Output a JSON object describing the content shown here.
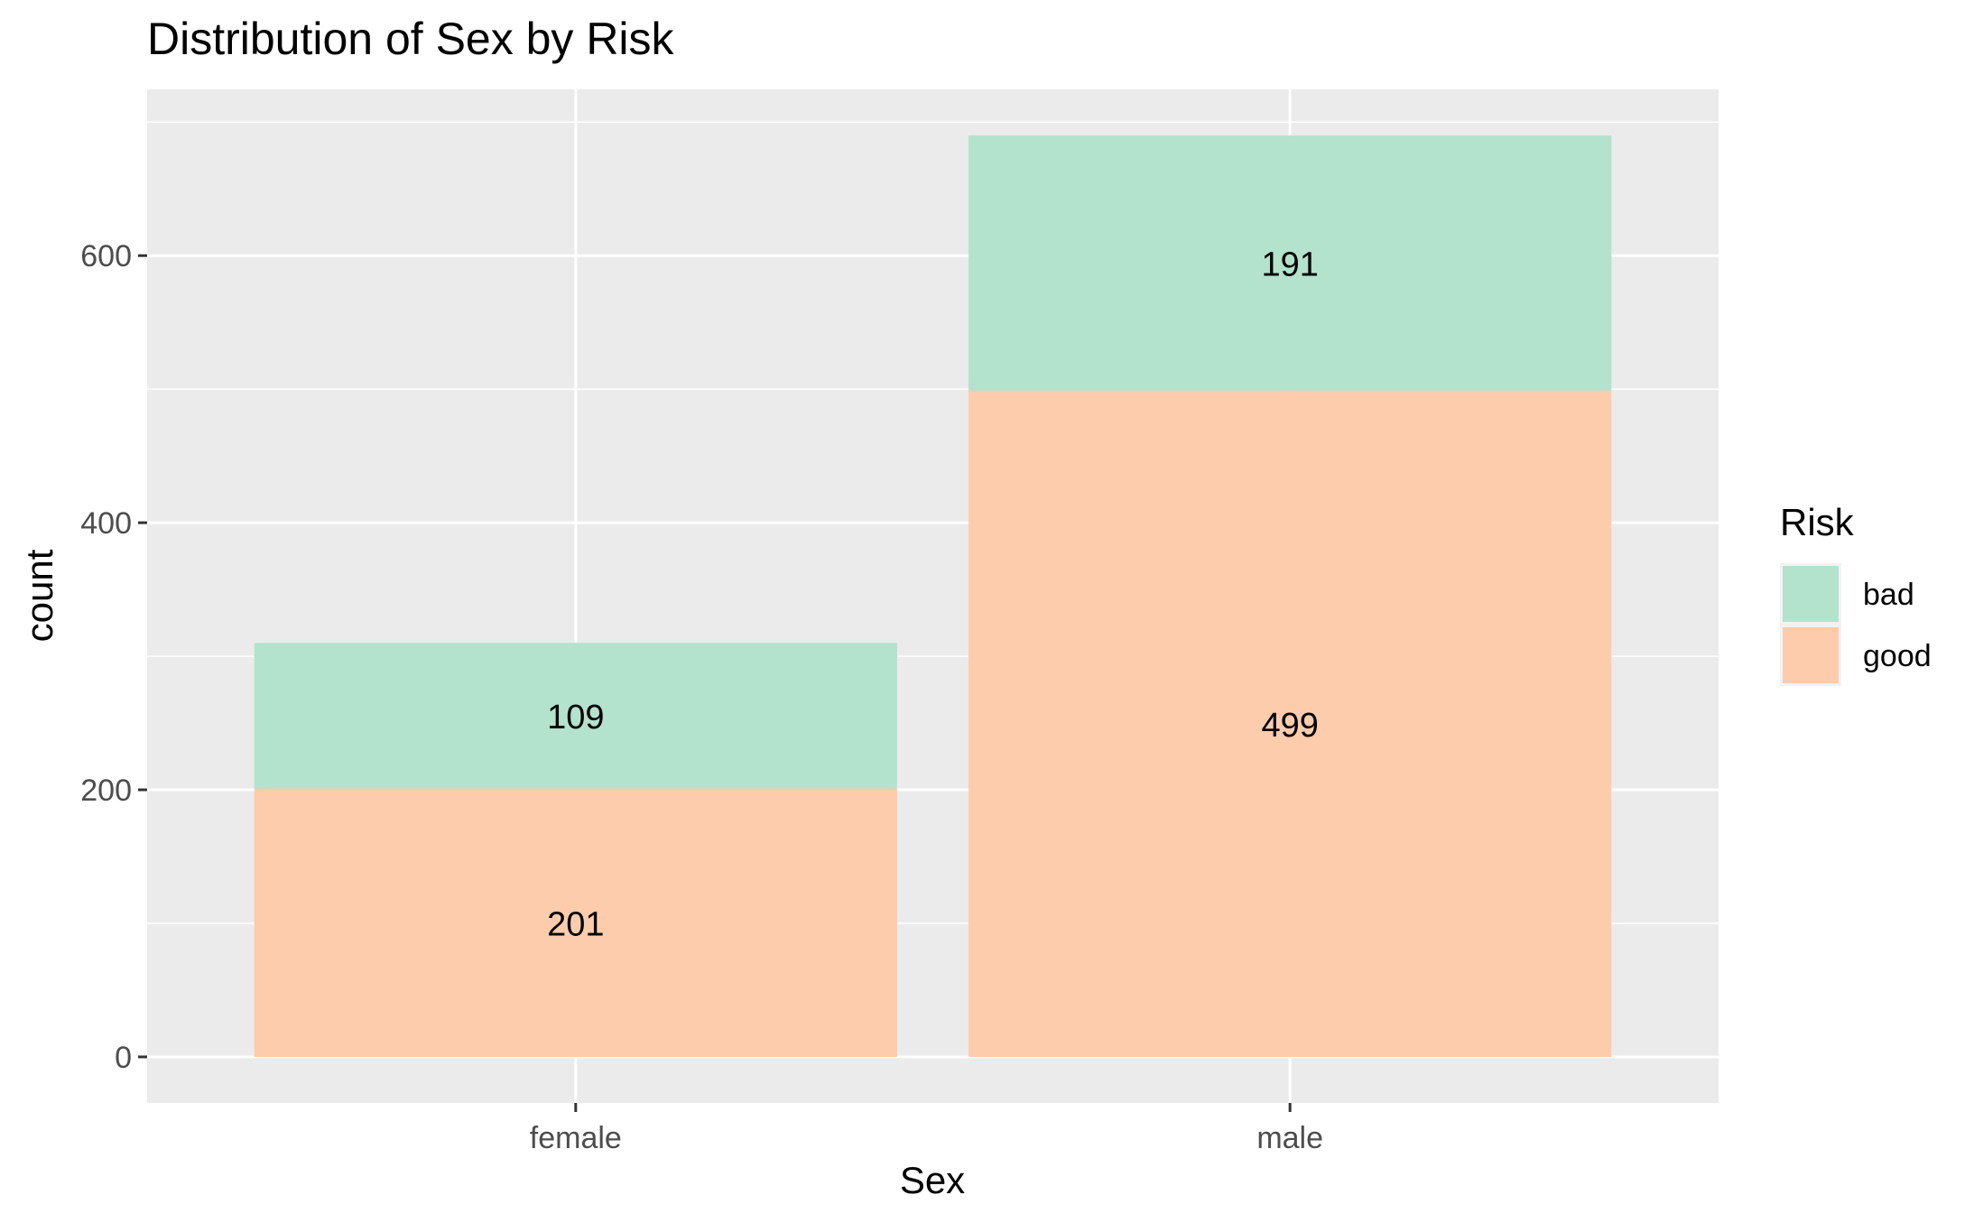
{
  "chart_data": {
    "type": "bar",
    "stacked": true,
    "title": "Distribution of Sex by Risk",
    "xlabel": "Sex",
    "ylabel": "count",
    "categories": [
      "female",
      "male"
    ],
    "series": [
      {
        "name": "good",
        "values": [
          201,
          499
        ],
        "color": "#FDCCAC"
      },
      {
        "name": "bad",
        "values": [
          109,
          191
        ],
        "color": "#B3E2CD"
      }
    ],
    "ylim": [
      -34.5,
      724.5
    ],
    "yticks": [
      0,
      200,
      400,
      600
    ],
    "ytick_labels": [
      "0",
      "200",
      "400",
      "600"
    ],
    "grid": true,
    "panel_background": "#EBEBEB",
    "gridline_color": "#FFFFFF",
    "data_labels": true,
    "legend": {
      "title": "Risk",
      "entries": [
        "bad",
        "good"
      ],
      "position": "right"
    }
  }
}
